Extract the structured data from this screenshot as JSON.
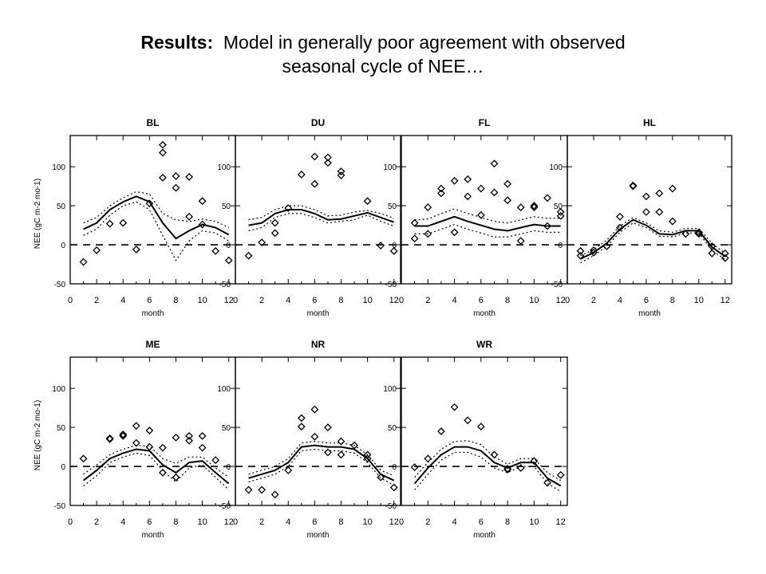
{
  "slide": {
    "title_bold": "Results:",
    "title_rest": "  Model in generally poor agreement with observed",
    "title_line2": "seasonal cycle of NEE…"
  },
  "chart_data": [
    {
      "type": "line",
      "title": "BL",
      "xlabel": "month",
      "ylabel": "NEE (gC m-2 mo-1)",
      "xlim": [
        0,
        12.5
      ],
      "ylim": [
        -50,
        140
      ],
      "xticks": [
        0,
        2,
        4,
        6,
        8,
        10,
        12
      ],
      "yticks": [
        -50,
        0,
        50,
        100
      ],
      "series": [
        {
          "role": "observed",
          "style": "diamond",
          "x": [
            1,
            2,
            3,
            4,
            5,
            6,
            7,
            7,
            7,
            8,
            8,
            9,
            9,
            10,
            10,
            11,
            12
          ],
          "y": [
            -22,
            -7,
            27,
            28,
            -6,
            53,
            128,
            118,
            86,
            88,
            73,
            87,
            36,
            56,
            26,
            -8,
            -20
          ]
        },
        {
          "role": "model",
          "style": "solid",
          "x": [
            1,
            2,
            3,
            4,
            5,
            6,
            7,
            8,
            9,
            10,
            11,
            12
          ],
          "y": [
            20,
            28,
            45,
            55,
            62,
            55,
            28,
            8,
            18,
            26,
            22,
            13
          ]
        },
        {
          "role": "model upper",
          "style": "dotted",
          "x": [
            1,
            2,
            3,
            4,
            5,
            6,
            7,
            8,
            9,
            10,
            11,
            12
          ],
          "y": [
            28,
            35,
            50,
            60,
            68,
            65,
            40,
            32,
            30,
            33,
            30,
            22
          ]
        },
        {
          "role": "model lower",
          "style": "dotted",
          "x": [
            1,
            2,
            3,
            4,
            5,
            6,
            7,
            8,
            9,
            10,
            11,
            12
          ],
          "y": [
            12,
            20,
            38,
            50,
            55,
            45,
            12,
            -20,
            5,
            18,
            15,
            5
          ]
        }
      ]
    },
    {
      "type": "line",
      "title": "DU",
      "xlabel": "month",
      "ylabel": "",
      "xlim": [
        0,
        12.5
      ],
      "ylim": [
        -50,
        140
      ],
      "xticks": [
        0,
        2,
        4,
        6,
        8,
        10,
        12
      ],
      "yticks": [
        -50,
        0,
        50,
        100
      ],
      "series": [
        {
          "role": "observed",
          "style": "diamond",
          "x": [
            1,
            2,
            3,
            3,
            4,
            5,
            6,
            6,
            7,
            7,
            8,
            8,
            10,
            11,
            12
          ],
          "y": [
            -14,
            3,
            28,
            15,
            47,
            90,
            113,
            78,
            112,
            105,
            94,
            89,
            56,
            -1,
            -8
          ]
        },
        {
          "role": "model",
          "style": "solid",
          "x": [
            1,
            2,
            3,
            4,
            5,
            6,
            7,
            8,
            9,
            10,
            11,
            12
          ],
          "y": [
            25,
            28,
            40,
            45,
            45,
            40,
            32,
            33,
            37,
            41,
            35,
            29
          ]
        },
        {
          "role": "model upper",
          "style": "dotted",
          "x": [
            1,
            2,
            3,
            4,
            5,
            6,
            7,
            8,
            9,
            10,
            11,
            12
          ],
          "y": [
            32,
            35,
            45,
            50,
            50,
            45,
            37,
            38,
            42,
            44,
            40,
            34
          ]
        },
        {
          "role": "model lower",
          "style": "dotted",
          "x": [
            1,
            2,
            3,
            4,
            5,
            6,
            7,
            8,
            9,
            10,
            11,
            12
          ],
          "y": [
            18,
            22,
            35,
            40,
            40,
            35,
            28,
            30,
            32,
            38,
            30,
            24
          ]
        }
      ]
    },
    {
      "type": "line",
      "title": "FL",
      "xlabel": "month",
      "ylabel": "",
      "xlim": [
        0,
        12.5
      ],
      "ylim": [
        -50,
        140
      ],
      "xticks": [
        0,
        2,
        4,
        6,
        8,
        10,
        12
      ],
      "yticks": [
        -50,
        0,
        50,
        100
      ],
      "series": [
        {
          "role": "observed",
          "style": "diamond",
          "x": [
            1,
            1,
            2,
            2,
            3,
            3,
            4,
            4,
            5,
            5,
            6,
            6,
            7,
            7,
            8,
            8,
            9,
            9,
            10,
            10,
            11,
            11,
            12,
            12
          ],
          "y": [
            28,
            8,
            48,
            14,
            72,
            66,
            82,
            16,
            84,
            62,
            72,
            38,
            104,
            67,
            78,
            57,
            48,
            5,
            50,
            48,
            60,
            24,
            42,
            37
          ]
        },
        {
          "role": "model",
          "style": "solid",
          "x": [
            1,
            2,
            3,
            4,
            5,
            6,
            7,
            8,
            9,
            10,
            11,
            12
          ],
          "y": [
            24,
            24,
            30,
            36,
            30,
            25,
            20,
            18,
            22,
            26,
            24,
            24
          ]
        },
        {
          "role": "model upper",
          "style": "dotted",
          "x": [
            1,
            2,
            3,
            4,
            5,
            6,
            7,
            8,
            9,
            10,
            11,
            12
          ],
          "y": [
            32,
            33,
            40,
            46,
            40,
            35,
            30,
            28,
            32,
            36,
            34,
            34
          ]
        },
        {
          "role": "model lower",
          "style": "dotted",
          "x": [
            1,
            2,
            3,
            4,
            5,
            6,
            7,
            8,
            9,
            10,
            11,
            12
          ],
          "y": [
            14,
            14,
            20,
            26,
            20,
            15,
            10,
            10,
            14,
            18,
            16,
            16
          ]
        }
      ]
    },
    {
      "type": "line",
      "title": "HL",
      "xlabel": "month",
      "ylabel": "",
      "xlim": [
        0,
        12.5
      ],
      "ylim": [
        -50,
        140
      ],
      "xticks": [
        0,
        2,
        4,
        6,
        8,
        10,
        12
      ],
      "yticks": [
        -50,
        0,
        50,
        100
      ],
      "series": [
        {
          "role": "observed",
          "style": "diamond",
          "x": [
            1,
            1,
            2,
            2,
            3,
            4,
            4,
            5,
            5,
            6,
            6,
            7,
            7,
            8,
            8,
            9,
            10,
            10,
            11,
            11,
            12,
            12
          ],
          "y": [
            -14,
            -8,
            -10,
            -7,
            -2,
            36,
            22,
            75,
            76,
            62,
            42,
            66,
            42,
            72,
            30,
            14,
            16,
            14,
            -2,
            -11,
            -17,
            -11
          ]
        },
        {
          "role": "model",
          "style": "solid",
          "x": [
            1,
            2,
            3,
            4,
            5,
            6,
            7,
            8,
            9,
            10,
            11,
            12
          ],
          "y": [
            -18,
            -10,
            2,
            20,
            32,
            25,
            14,
            13,
            18,
            18,
            -3,
            -15
          ]
        },
        {
          "role": "model upper",
          "style": "dotted",
          "x": [
            1,
            2,
            3,
            4,
            5,
            6,
            7,
            8,
            9,
            10,
            11,
            12
          ],
          "y": [
            -14,
            -6,
            6,
            24,
            35,
            28,
            18,
            16,
            21,
            21,
            2,
            -11
          ]
        },
        {
          "role": "model lower",
          "style": "dotted",
          "x": [
            1,
            2,
            3,
            4,
            5,
            6,
            7,
            8,
            9,
            10,
            11,
            12
          ],
          "y": [
            -23,
            -14,
            -2,
            16,
            28,
            22,
            11,
            10,
            15,
            15,
            -7,
            -19
          ]
        }
      ]
    },
    {
      "type": "line",
      "title": "ME",
      "xlabel": "month",
      "ylabel": "NEE (gC m-2 mo-1)",
      "xlim": [
        0,
        12.5
      ],
      "ylim": [
        -50,
        140
      ],
      "xticks": [
        0,
        2,
        4,
        6,
        8,
        10,
        12
      ],
      "yticks": [
        -50,
        0,
        50,
        100
      ],
      "series": [
        {
          "role": "observed",
          "style": "diamond",
          "x": [
            1,
            3,
            3,
            4,
            4,
            5,
            5,
            6,
            6,
            7,
            7,
            8,
            8,
            9,
            9,
            10,
            10,
            11
          ],
          "y": [
            10,
            36,
            35,
            41,
            39,
            52,
            30,
            46,
            25,
            24,
            -8,
            37,
            -14,
            39,
            33,
            39,
            24,
            8
          ]
        },
        {
          "role": "model",
          "style": "solid",
          "x": [
            1,
            2,
            3,
            4,
            5,
            6,
            7,
            8,
            9,
            10,
            11,
            12
          ],
          "y": [
            -18,
            -5,
            10,
            17,
            22,
            20,
            2,
            -8,
            5,
            7,
            -8,
            -22
          ]
        },
        {
          "role": "model upper",
          "style": "dotted",
          "x": [
            1,
            2,
            3,
            4,
            5,
            6,
            7,
            8,
            9,
            10,
            11,
            12
          ],
          "y": [
            -10,
            2,
            15,
            22,
            27,
            26,
            10,
            4,
            12,
            12,
            -2,
            -14
          ]
        },
        {
          "role": "model lower",
          "style": "dotted",
          "x": [
            1,
            2,
            3,
            4,
            5,
            6,
            7,
            8,
            9,
            10,
            11,
            12
          ],
          "y": [
            -25,
            -12,
            5,
            12,
            17,
            14,
            -5,
            -20,
            -2,
            2,
            -14,
            -30
          ]
        }
      ]
    },
    {
      "type": "line",
      "title": "NR",
      "xlabel": "month",
      "ylabel": "",
      "xlim": [
        0,
        12.5
      ],
      "ylim": [
        -50,
        140
      ],
      "xticks": [
        0,
        2,
        4,
        6,
        8,
        10,
        12
      ],
      "yticks": [
        -50,
        0,
        50,
        100
      ],
      "series": [
        {
          "role": "observed",
          "style": "diamond",
          "x": [
            1,
            2,
            3,
            4,
            5,
            5,
            6,
            6,
            7,
            7,
            8,
            8,
            9,
            10,
            10,
            11,
            12
          ],
          "y": [
            -30,
            -30,
            -36,
            -5,
            62,
            51,
            73,
            38,
            50,
            18,
            32,
            15,
            27,
            15,
            10,
            -14,
            -27
          ]
        },
        {
          "role": "model",
          "style": "solid",
          "x": [
            1,
            2,
            3,
            4,
            5,
            6,
            7,
            8,
            9,
            10,
            11,
            12
          ],
          "y": [
            -15,
            -10,
            -5,
            5,
            25,
            27,
            25,
            25,
            22,
            10,
            -10,
            -18
          ]
        },
        {
          "role": "model upper",
          "style": "dotted",
          "x": [
            1,
            2,
            3,
            4,
            5,
            6,
            7,
            8,
            9,
            10,
            11,
            12
          ],
          "y": [
            -10,
            -5,
            0,
            10,
            30,
            32,
            30,
            30,
            27,
            15,
            -5,
            -12
          ]
        },
        {
          "role": "model lower",
          "style": "dotted",
          "x": [
            1,
            2,
            3,
            4,
            5,
            6,
            7,
            8,
            9,
            10,
            11,
            12
          ],
          "y": [
            -20,
            -15,
            -10,
            0,
            20,
            22,
            20,
            20,
            17,
            5,
            -15,
            -24
          ]
        }
      ]
    },
    {
      "type": "line",
      "title": "WR",
      "xlabel": "month",
      "ylabel": "",
      "xlim": [
        0,
        12.5
      ],
      "ylim": [
        -50,
        140
      ],
      "xticks": [
        0,
        2,
        4,
        6,
        8,
        10,
        12
      ],
      "yticks": [
        -50,
        0,
        50,
        100
      ],
      "series": [
        {
          "role": "observed",
          "style": "diamond",
          "x": [
            1,
            2,
            3,
            4,
            5,
            6,
            7,
            8,
            8,
            9,
            10,
            11,
            12
          ],
          "y": [
            -1,
            10,
            45,
            76,
            59,
            51,
            15,
            -4,
            -3,
            -2,
            7,
            -21,
            -11
          ]
        },
        {
          "role": "model",
          "style": "solid",
          "x": [
            1,
            2,
            3,
            4,
            5,
            6,
            7,
            8,
            9,
            10,
            11,
            12
          ],
          "y": [
            -22,
            -2,
            15,
            25,
            25,
            20,
            5,
            -2,
            5,
            5,
            -15,
            -25
          ]
        },
        {
          "role": "model upper",
          "style": "dotted",
          "x": [
            1,
            2,
            3,
            4,
            5,
            6,
            7,
            8,
            9,
            10,
            11,
            12
          ],
          "y": [
            -14,
            5,
            22,
            32,
            33,
            28,
            12,
            3,
            10,
            10,
            -8,
            -18
          ]
        },
        {
          "role": "model lower",
          "style": "dotted",
          "x": [
            1,
            2,
            3,
            4,
            5,
            6,
            7,
            8,
            9,
            10,
            11,
            12
          ],
          "y": [
            -30,
            -10,
            8,
            18,
            18,
            12,
            -2,
            -8,
            0,
            0,
            -22,
            -32
          ]
        }
      ]
    }
  ]
}
